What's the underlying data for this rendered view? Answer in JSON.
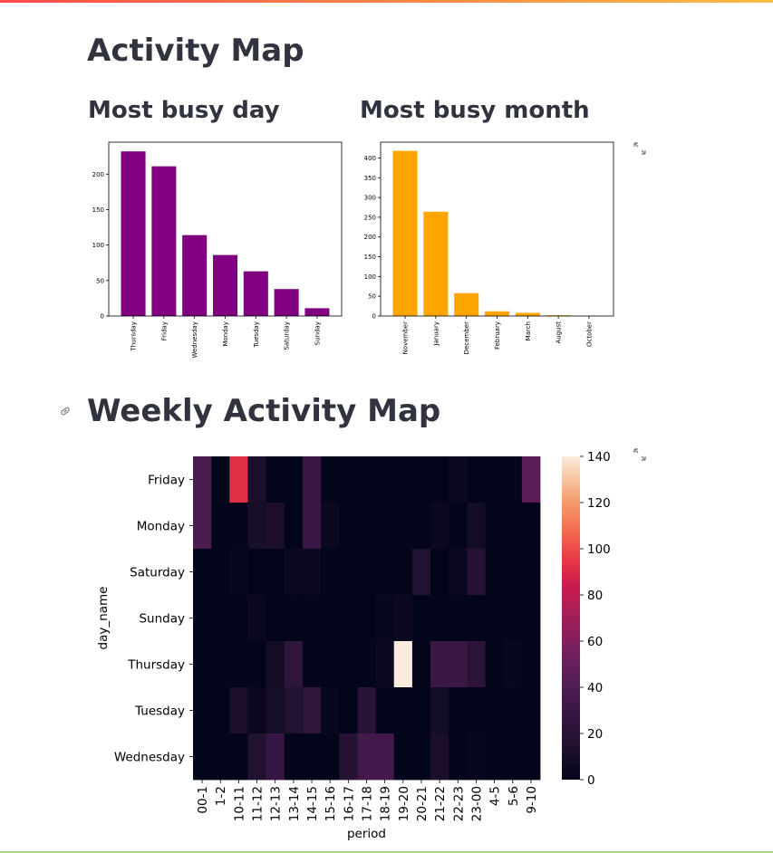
{
  "page": {
    "title": "Activity Map",
    "subtitle_day": "Most busy day",
    "subtitle_month": "Most busy month",
    "weekly_title": "Weekly Activity Map",
    "link_icon": "link-icon",
    "fullscreen_icon": "expand-icon"
  },
  "chart_data": [
    {
      "type": "bar",
      "title": "Most busy day",
      "categories": [
        "Thursday",
        "Friday",
        "Wednesday",
        "Monday",
        "Tuesday",
        "Saturday",
        "Sunday"
      ],
      "values": [
        232,
        211,
        114,
        86,
        63,
        38,
        11
      ],
      "ylim": [
        0,
        245
      ],
      "yticks": [
        0,
        50,
        100,
        150,
        200
      ],
      "color": "#800080",
      "xlabel": "",
      "ylabel": ""
    },
    {
      "type": "bar",
      "title": "Most busy month",
      "categories": [
        "November",
        "January",
        "December",
        "February",
        "March",
        "August",
        "October"
      ],
      "values": [
        418,
        264,
        58,
        12,
        8,
        2,
        1
      ],
      "ylim": [
        0,
        440
      ],
      "yticks": [
        0,
        50,
        100,
        150,
        200,
        250,
        300,
        350,
        400
      ],
      "color": "#ffa500",
      "xlabel": "",
      "ylabel": ""
    },
    {
      "type": "heatmap",
      "title": "Weekly Activity Map",
      "xlabel": "period",
      "ylabel": "day_name",
      "rows": [
        "Friday",
        "Monday",
        "Saturday",
        "Sunday",
        "Thursday",
        "Tuesday",
        "Wednesday"
      ],
      "columns": [
        "00-1",
        "1-2",
        "10-11",
        "11-12",
        "12-13",
        "13-14",
        "14-15",
        "15-16",
        "16-17",
        "17-18",
        "18-19",
        "19-20",
        "20-21",
        "21-22",
        "22-23",
        "23-00",
        "4-5",
        "5-6",
        "9-10"
      ],
      "values": [
        [
          38,
          0,
          92,
          12,
          0,
          0,
          30,
          0,
          0,
          0,
          0,
          0,
          0,
          0,
          4,
          0,
          0,
          0,
          44
        ],
        [
          38,
          0,
          0,
          10,
          12,
          0,
          30,
          4,
          0,
          0,
          0,
          0,
          0,
          4,
          0,
          8,
          0,
          0,
          0
        ],
        [
          0,
          0,
          2,
          0,
          0,
          4,
          4,
          0,
          0,
          0,
          0,
          0,
          16,
          0,
          4,
          18,
          0,
          0,
          0
        ],
        [
          0,
          0,
          0,
          4,
          0,
          0,
          0,
          0,
          0,
          0,
          2,
          4,
          0,
          0,
          0,
          0,
          0,
          0,
          0
        ],
        [
          0,
          0,
          0,
          0,
          8,
          24,
          0,
          0,
          0,
          0,
          4,
          140,
          0,
          30,
          30,
          22,
          0,
          2,
          0
        ],
        [
          0,
          0,
          12,
          4,
          10,
          16,
          24,
          2,
          0,
          20,
          0,
          0,
          0,
          8,
          0,
          0,
          0,
          0,
          0
        ],
        [
          0,
          0,
          0,
          16,
          28,
          0,
          0,
          0,
          18,
          34,
          34,
          0,
          0,
          12,
          0,
          2,
          0,
          0,
          0
        ]
      ],
      "colorbar": {
        "min": 0,
        "max": 140,
        "ticks": [
          0,
          20,
          40,
          60,
          80,
          100,
          120,
          140
        ]
      }
    }
  ]
}
